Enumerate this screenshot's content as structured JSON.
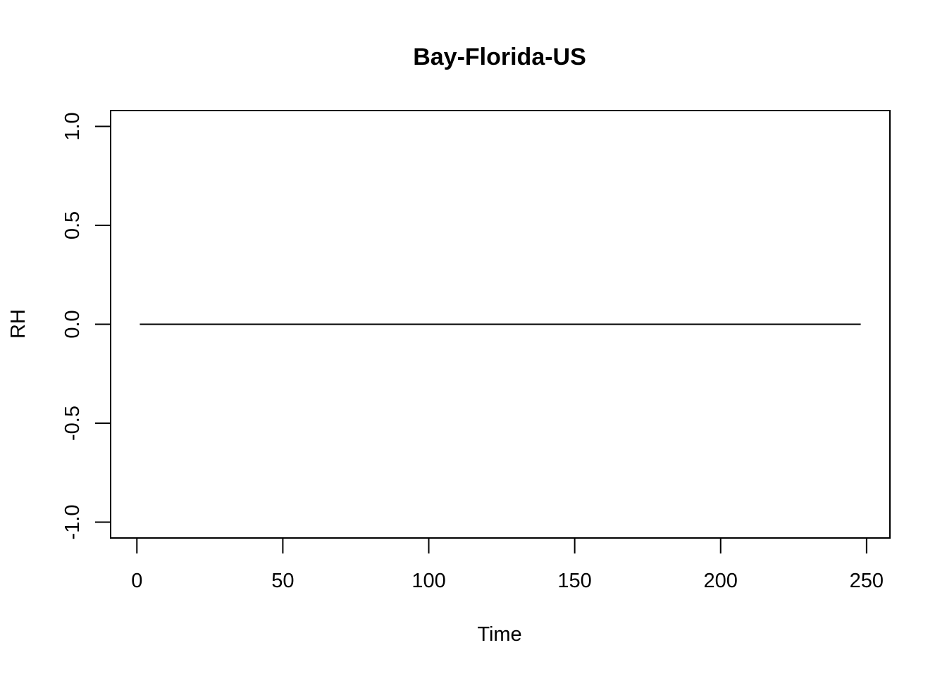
{
  "chart_data": {
    "type": "line",
    "title": "Bay-Florida-US",
    "xlabel": "Time",
    "ylabel": "RH",
    "xlim": [
      -9,
      258
    ],
    "ylim": [
      -1.08,
      1.08
    ],
    "x_ticks": [
      0,
      50,
      100,
      150,
      200,
      250
    ],
    "x_tick_labels": [
      "0",
      "50",
      "100",
      "150",
      "200",
      "250"
    ],
    "y_ticks": [
      -1.0,
      -0.5,
      0.0,
      0.5,
      1.0
    ],
    "y_tick_labels": [
      "-1.0",
      "-0.5",
      "0.0",
      "0.5",
      "1.0"
    ],
    "series": [
      {
        "name": "RH",
        "x": [
          1,
          248
        ],
        "values": [
          0,
          0
        ],
        "color": "#000000"
      }
    ],
    "grid": false
  }
}
